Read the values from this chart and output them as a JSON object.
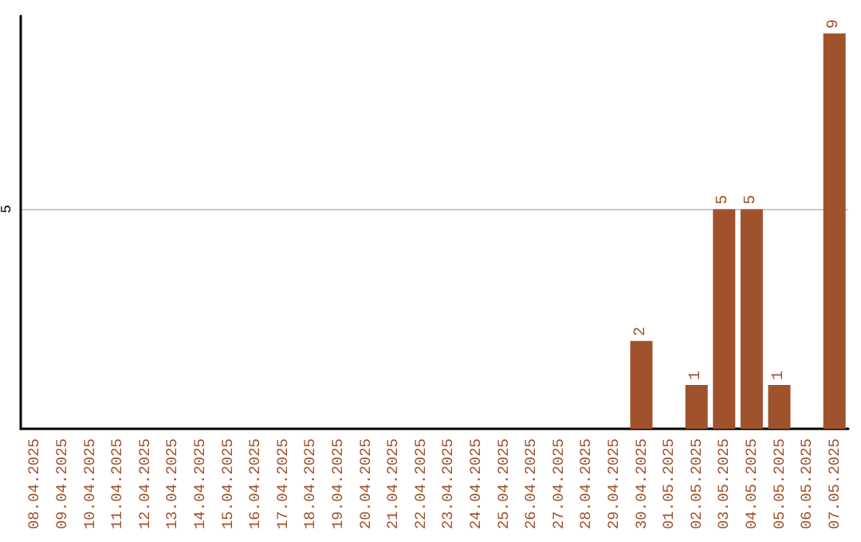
{
  "chart_data": {
    "type": "bar",
    "categories": [
      "08.04.2025",
      "09.04.2025",
      "10.04.2025",
      "11.04.2025",
      "12.04.2025",
      "13.04.2025",
      "14.04.2025",
      "15.04.2025",
      "16.04.2025",
      "17.04.2025",
      "18.04.2025",
      "19.04.2025",
      "20.04.2025",
      "21.04.2025",
      "22.04.2025",
      "23.04.2025",
      "24.04.2025",
      "25.04.2025",
      "26.04.2025",
      "27.04.2025",
      "28.04.2025",
      "29.04.2025",
      "30.04.2025",
      "01.05.2025",
      "02.05.2025",
      "03.05.2025",
      "04.05.2025",
      "05.05.2025",
      "06.05.2025",
      "07.05.2025"
    ],
    "values": [
      null,
      null,
      null,
      null,
      null,
      null,
      null,
      null,
      null,
      null,
      null,
      null,
      null,
      null,
      null,
      null,
      null,
      null,
      null,
      null,
      null,
      null,
      2,
      null,
      1,
      5,
      5,
      1,
      null,
      9
    ],
    "color": "#a0522d",
    "ylim": [
      0,
      9.4
    ],
    "yticks": [
      5
    ],
    "grid": "y",
    "data_labels": true
  }
}
